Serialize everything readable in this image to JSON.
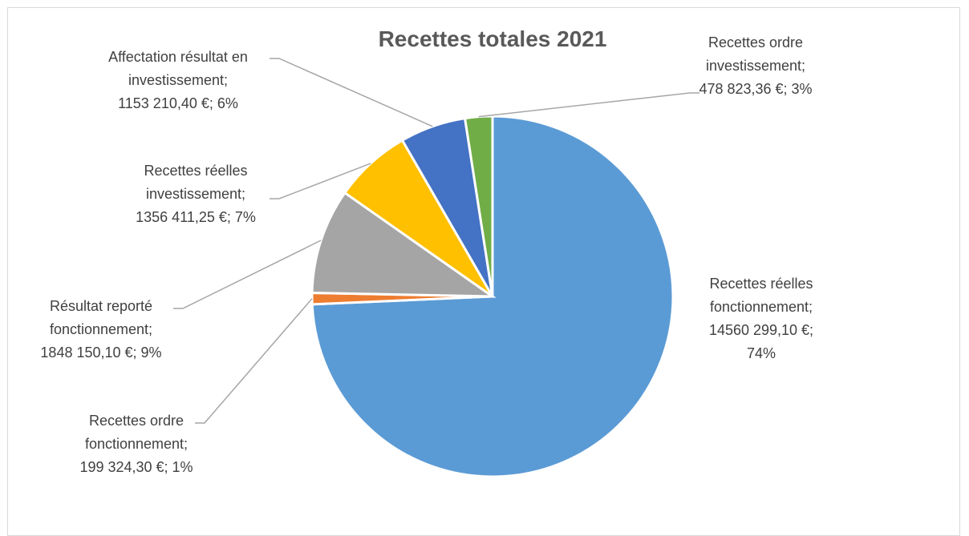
{
  "chart_data": {
    "type": "pie",
    "title": "Recettes totales 2021",
    "colors": [
      "#5b9bd5",
      "#ed7d31",
      "#a5a5a5",
      "#ffc000",
      "#4472c4",
      "#70ad47"
    ],
    "slices": [
      {
        "name": "Recettes réelles fonctionnement",
        "value": 14560299.1,
        "percent": 74,
        "label_lines": [
          "Recettes réelles",
          "fonctionnement;",
          "14560 299,10 €;",
          "74%"
        ]
      },
      {
        "name": "Recettes ordre fonctionnement",
        "value": 199324.3,
        "percent": 1,
        "label_lines": [
          "Recettes ordre",
          "fonctionnement;",
          "199 324,30 €; 1%"
        ]
      },
      {
        "name": "Résultat reporté fonctionnement",
        "value": 1848150.1,
        "percent": 9,
        "label_lines": [
          "Résultat reporté",
          "fonctionnement;",
          "1848 150,10 €; 9%"
        ]
      },
      {
        "name": "Recettes réelles investissement",
        "value": 1356411.25,
        "percent": 7,
        "label_lines": [
          "Recettes réelles",
          "investissement;",
          "1356 411,25 €; 7%"
        ]
      },
      {
        "name": "Affectation résultat en investissement",
        "value": 1153210.4,
        "percent": 6,
        "label_lines": [
          "Affectation résultat en",
          "investissement;",
          "1153 210,40 €; 6%"
        ]
      },
      {
        "name": "Recettes ordre investissement",
        "value": 478823.36,
        "percent": 3,
        "label_lines": [
          "Recettes ordre",
          "investissement;",
          "478 823,36 €; 3%"
        ]
      }
    ]
  }
}
